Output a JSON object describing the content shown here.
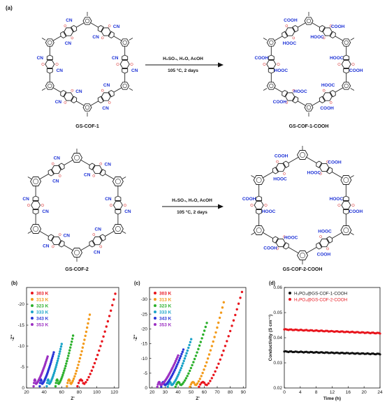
{
  "scheme": {
    "panel_a": "(a)",
    "row1": {
      "left_name": "GS-COF-1",
      "right_name": "GS-COF-1-COOH",
      "cond_line1": "H₂SO₄, H₂O, AcOH",
      "cond_line2": "105 °C, 2 days"
    },
    "row2": {
      "left_name": "GS-COF-2",
      "right_name": "GS-COF-2-COOH",
      "cond_line1": "H₂SO₄, H₂O, AcOH",
      "cond_line2": "105 °C, 2 days"
    },
    "group_cn": "CN",
    "group_cooh": "COOH",
    "group_hooc": "HOOC"
  },
  "colors": {
    "structure": "#222222",
    "oxygen": "#d62020",
    "functional_group": "#1a2fd6",
    "t303": "#e8141c",
    "t313": "#f39a1a",
    "t323": "#2bb02b",
    "t333": "#1aa3c8",
    "t343": "#2a36d8",
    "t353": "#9b2fc2",
    "cof1_cooh": "#111111",
    "cof2_cooh": "#e8141c"
  },
  "chart_data": [
    {
      "type": "scatter",
      "panel": "(b)",
      "xlabel": "Z'",
      "ylabel": "-Z''",
      "xlim": [
        20,
        125
      ],
      "ylim": [
        0,
        24
      ],
      "xticks": [
        "20",
        "40",
        "60",
        "80",
        "100",
        "120"
      ],
      "yticks": [
        "0",
        "-5",
        "-10",
        "-15",
        "-20"
      ],
      "series": [
        {
          "name": "303 K",
          "start": 78,
          "end": 121,
          "peak": 22.5
        },
        {
          "name": "313 K",
          "start": 66,
          "end": 92,
          "peak": 17.5
        },
        {
          "name": "323 K",
          "start": 53,
          "end": 73,
          "peak": 12.5
        },
        {
          "name": "333 K",
          "start": 43,
          "end": 60,
          "peak": 10.5
        },
        {
          "name": "343 K",
          "start": 35,
          "end": 51,
          "peak": 8.5
        },
        {
          "name": "353 K",
          "start": 28,
          "end": 44,
          "peak": 7.5
        }
      ]
    },
    {
      "type": "scatter",
      "panel": "(c)",
      "xlabel": "Z'",
      "ylabel": "-Z''",
      "xlim": [
        18,
        92
      ],
      "ylim": [
        0,
        34
      ],
      "xticks": [
        "20",
        "30",
        "40",
        "50",
        "60",
        "70",
        "80",
        "90"
      ],
      "yticks": [
        "0",
        "-5",
        "-10",
        "-15",
        "-20",
        "-25",
        "-30"
      ],
      "series": [
        {
          "name": "303 K",
          "start": 56,
          "end": 89,
          "peak": 32.5
        },
        {
          "name": "313 K",
          "start": 49,
          "end": 75,
          "peak": 29.0
        },
        {
          "name": "323 K",
          "start": 38,
          "end": 62,
          "peak": 22.0
        },
        {
          "name": "333 K",
          "start": 32,
          "end": 50,
          "peak": 16.5
        },
        {
          "name": "343 K",
          "start": 27,
          "end": 44,
          "peak": 13.0
        },
        {
          "name": "353 K",
          "start": 24,
          "end": 40,
          "peak": 11.0
        }
      ]
    },
    {
      "type": "scatter",
      "panel": "(d)",
      "xlabel": "Time (h)",
      "ylabel": "Conductivity (S cm⁻¹)",
      "xlim": [
        0,
        24
      ],
      "ylim": [
        0.02,
        0.06
      ],
      "xticks": [
        "0",
        "4",
        "8",
        "12",
        "16",
        "20",
        "24"
      ],
      "yticks": [
        "0.02",
        "0.03",
        "0.04",
        "0.05",
        "0.06"
      ],
      "series": [
        {
          "name": "H₃PO₄@GS-COF-1-COOH",
          "level_start": 0.0345,
          "level_end": 0.0335
        },
        {
          "name": "H₃PO₄@GS-COF-2-COOH",
          "level_start": 0.0433,
          "level_end": 0.0418
        }
      ]
    }
  ]
}
